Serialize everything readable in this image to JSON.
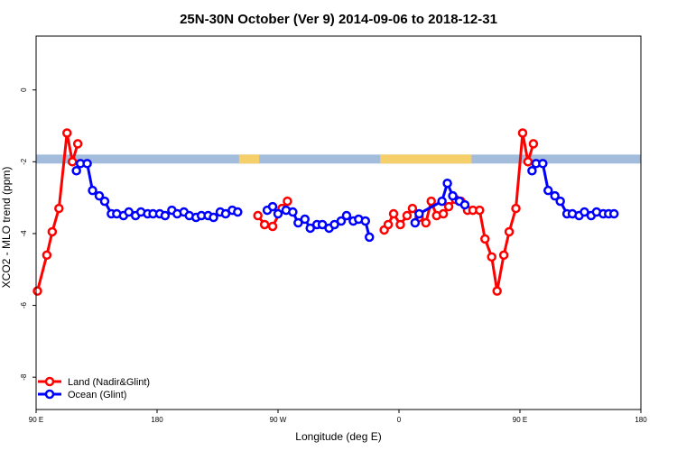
{
  "chart_data": {
    "type": "line",
    "title": "25N-30N October (Ver 9)   2014-09-06 to 2018-12-31",
    "xlabel": "Longitude (deg E)",
    "ylabel": "XCO2 - MLO trend (ppm)",
    "xlim": [
      90,
      540
    ],
    "ylim": [
      -8.9,
      1.5
    ],
    "x_ticks": [
      {
        "value": 90,
        "label": "90 E"
      },
      {
        "value": 180,
        "label": "180"
      },
      {
        "value": 270,
        "label": "90 W"
      },
      {
        "value": 360,
        "label": "0"
      },
      {
        "value": 450,
        "label": "90 E"
      },
      {
        "value": 540,
        "label": "180"
      }
    ],
    "y_ticks": [
      0,
      -2,
      -4,
      -6,
      -8
    ],
    "legend_position": "bottom-left",
    "land_mask_band": {
      "y_range": [
        -2.05,
        -1.8
      ],
      "land_color": "#f5d06a",
      "ocean_color": "#a3bcdc",
      "land_spans": [
        [
          241,
          256
        ],
        [
          346,
          414
        ]
      ]
    },
    "series": [
      {
        "name": "Land (Nadir&Glint)",
        "color": "#ff0000",
        "points": [
          [
            91,
            -5.6
          ],
          [
            98,
            -4.6
          ],
          [
            102,
            -3.95
          ],
          [
            107,
            -3.3
          ],
          [
            113,
            -1.2
          ],
          [
            117,
            -2.0
          ],
          [
            121,
            -1.5
          ],
          [
            255,
            -3.5
          ],
          [
            260,
            -3.75
          ],
          [
            266,
            -3.8
          ],
          [
            273,
            -3.3
          ],
          [
            277,
            -3.1
          ],
          [
            349,
            -3.9
          ],
          [
            352,
            -3.75
          ],
          [
            356,
            -3.45
          ],
          [
            361,
            -3.75
          ],
          [
            366,
            -3.5
          ],
          [
            370,
            -3.3
          ],
          [
            375,
            -3.55
          ],
          [
            380,
            -3.7
          ],
          [
            384,
            -3.1
          ],
          [
            388,
            -3.5
          ],
          [
            393,
            -3.45
          ],
          [
            397,
            -3.25
          ],
          [
            402,
            -3.05
          ],
          [
            406,
            -3.1
          ],
          [
            411,
            -3.35
          ],
          [
            415,
            -3.35
          ],
          [
            420,
            -3.35
          ],
          [
            424,
            -4.15
          ],
          [
            429,
            -4.65
          ],
          [
            433,
            -5.6
          ],
          [
            438,
            -4.6
          ],
          [
            442,
            -3.95
          ],
          [
            447,
            -3.3
          ],
          [
            452,
            -1.2
          ],
          [
            456,
            -2.0
          ],
          [
            460,
            -1.5
          ]
        ]
      },
      {
        "name": "Ocean (Glint)",
        "color": "#0000ff",
        "points": [
          [
            120,
            -2.25
          ],
          [
            123,
            -2.05
          ],
          [
            128,
            -2.05
          ],
          [
            132,
            -2.8
          ],
          [
            137,
            -2.95
          ],
          [
            141,
            -3.1
          ],
          [
            146,
            -3.45
          ],
          [
            150,
            -3.45
          ],
          [
            155,
            -3.5
          ],
          [
            159,
            -3.4
          ],
          [
            164,
            -3.5
          ],
          [
            168,
            -3.4
          ],
          [
            173,
            -3.45
          ],
          [
            177,
            -3.45
          ],
          [
            182,
            -3.45
          ],
          [
            186,
            -3.5
          ],
          [
            191,
            -3.35
          ],
          [
            195,
            -3.45
          ],
          [
            200,
            -3.4
          ],
          [
            204,
            -3.5
          ],
          [
            209,
            -3.55
          ],
          [
            213,
            -3.5
          ],
          [
            218,
            -3.5
          ],
          [
            222,
            -3.55
          ],
          [
            227,
            -3.4
          ],
          [
            231,
            -3.45
          ],
          [
            236,
            -3.35
          ],
          [
            240,
            -3.4
          ],
          [
            262,
            -3.35
          ],
          [
            266,
            -3.25
          ],
          [
            270,
            -3.45
          ],
          [
            276,
            -3.35
          ],
          [
            281,
            -3.4
          ],
          [
            285,
            -3.7
          ],
          [
            290,
            -3.6
          ],
          [
            294,
            -3.85
          ],
          [
            299,
            -3.75
          ],
          [
            303,
            -3.75
          ],
          [
            308,
            -3.85
          ],
          [
            312,
            -3.75
          ],
          [
            317,
            -3.65
          ],
          [
            321,
            -3.5
          ],
          [
            326,
            -3.65
          ],
          [
            330,
            -3.6
          ],
          [
            335,
            -3.65
          ],
          [
            338,
            -4.1
          ],
          [
            372,
            -3.7
          ],
          [
            375,
            -3.45
          ],
          [
            392,
            -3.1
          ],
          [
            396,
            -2.6
          ],
          [
            400,
            -2.95
          ],
          [
            405,
            -3.1
          ],
          [
            409,
            -3.2
          ],
          [
            459,
            -2.25
          ],
          [
            462,
            -2.05
          ],
          [
            467,
            -2.05
          ],
          [
            471,
            -2.8
          ],
          [
            476,
            -2.95
          ],
          [
            480,
            -3.1
          ],
          [
            485,
            -3.45
          ],
          [
            489,
            -3.45
          ],
          [
            494,
            -3.5
          ],
          [
            498,
            -3.4
          ],
          [
            503,
            -3.5
          ],
          [
            507,
            -3.4
          ],
          [
            512,
            -3.45
          ],
          [
            516,
            -3.45
          ],
          [
            520,
            -3.45
          ]
        ]
      }
    ],
    "series_breaks": {
      "Land (Nadir&Glint)": [
        7,
        12
      ],
      "Ocean (Glint)": [
        28,
        46,
        53
      ]
    }
  }
}
